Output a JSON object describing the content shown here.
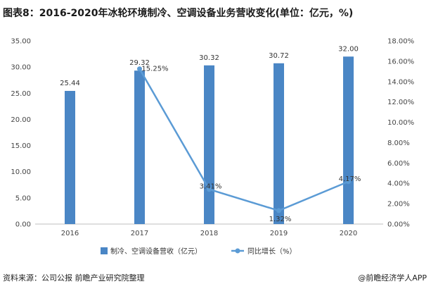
{
  "title": "图表8：2016-2020年冰轮环境制冷、空调设备业务营收变化(单位：亿元，%)",
  "chart_data": {
    "type": "bar",
    "categories": [
      "2016",
      "2017",
      "2018",
      "2019",
      "2020"
    ],
    "series": [
      {
        "name": "制冷、空调设备营收（亿元）",
        "type": "bar",
        "axis": "left",
        "values": [
          25.44,
          29.32,
          30.32,
          30.72,
          32.0
        ],
        "labels": [
          "25.44",
          "29.32",
          "30.32",
          "30.72",
          "32.00"
        ],
        "color": "#4a86c5"
      },
      {
        "name": "同比增长（%）",
        "type": "line",
        "axis": "right",
        "values": [
          null,
          15.25,
          3.41,
          1.32,
          4.17
        ],
        "labels": [
          "",
          "15.25%",
          "3.41%",
          "1.32%",
          "4.17%"
        ],
        "color": "#5b9bd5"
      }
    ],
    "y_left": {
      "ylim": [
        0,
        35
      ],
      "ticks": [
        "0.00",
        "5.00",
        "10.00",
        "15.00",
        "20.00",
        "25.00",
        "30.00",
        "35.00"
      ]
    },
    "y_right": {
      "ylim": [
        0,
        18
      ],
      "ticks": [
        "0.00%",
        "2.00%",
        "4.00%",
        "6.00%",
        "8.00%",
        "10.00%",
        "12.00%",
        "14.00%",
        "16.00%",
        "18.00%"
      ]
    },
    "grid": false,
    "legend_position": "bottom"
  },
  "footer": {
    "source": "资料来源：公司公报 前瞻产业研究院整理",
    "brand": "@前瞻经济学人APP"
  }
}
